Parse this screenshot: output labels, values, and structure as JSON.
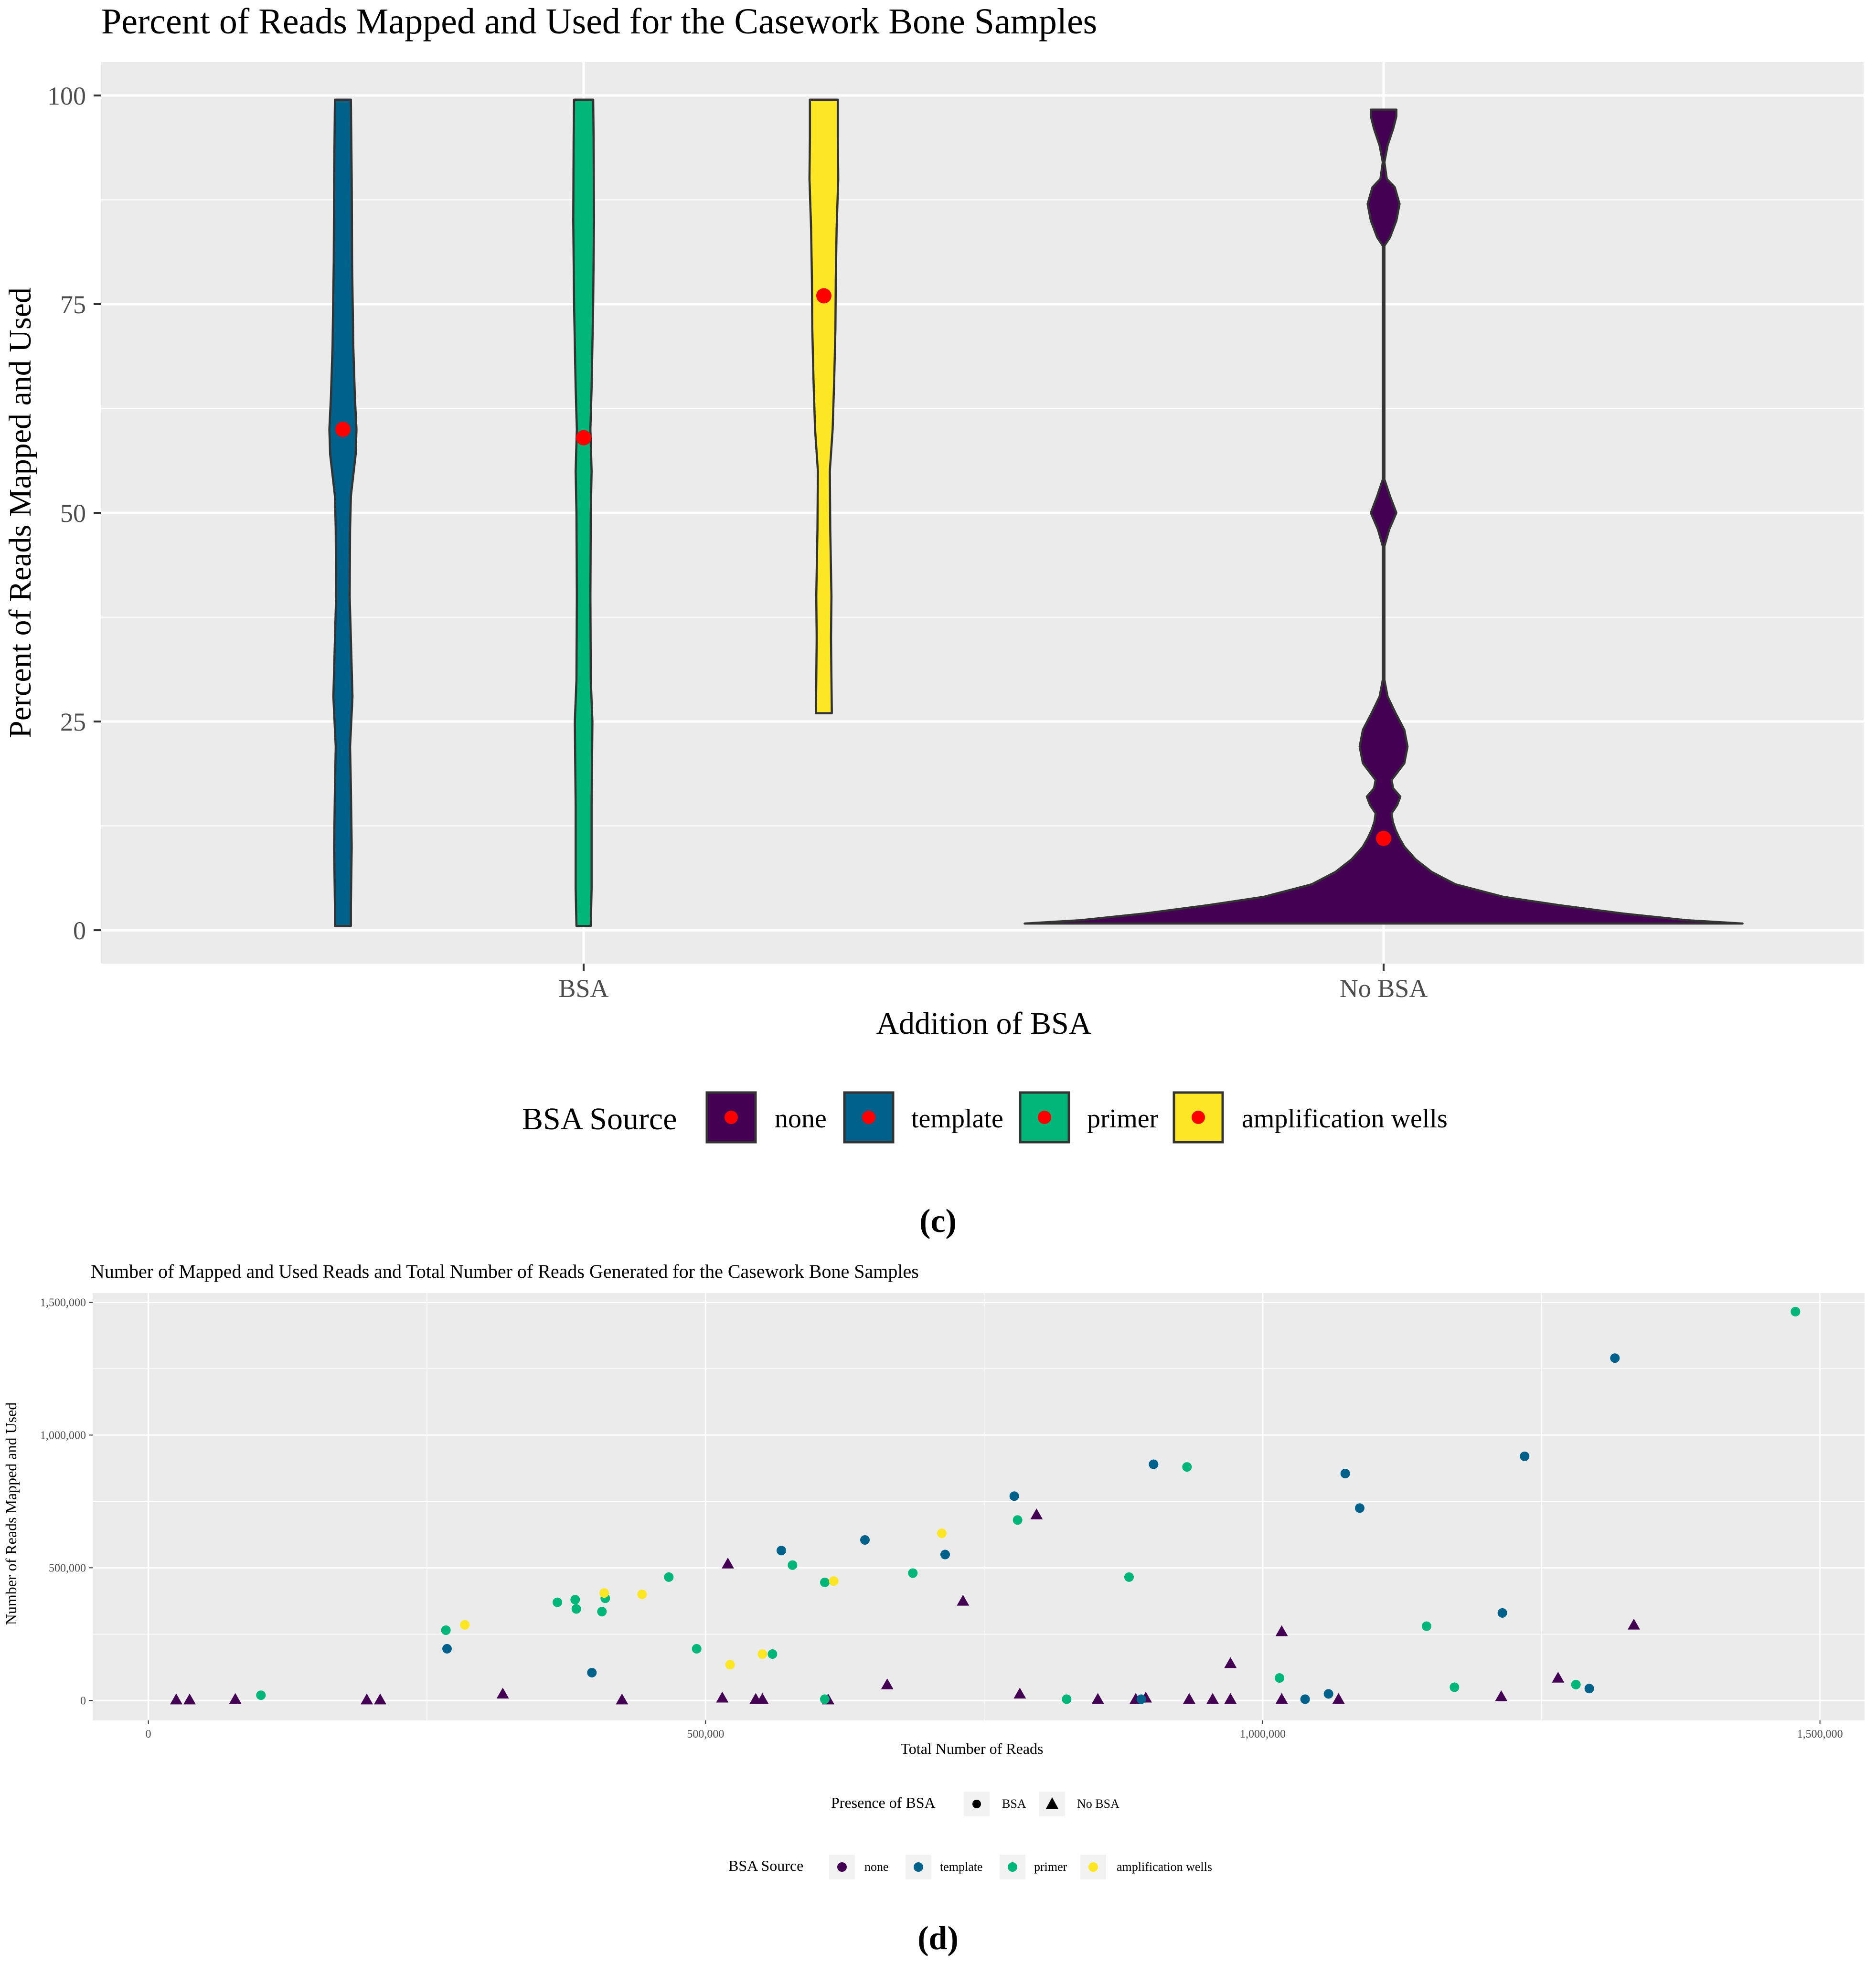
{
  "colors": {
    "none": "#440154",
    "template": "#00628b",
    "primer": "#00b679",
    "amplification_wells": "#fde725",
    "mean_point": "#ff0000",
    "panel_bg": "#ebebeb",
    "grid": "#ffffff",
    "outline": "#333333"
  },
  "chart_data": [
    {
      "id": "c",
      "type": "violin",
      "panel_label": "(c)",
      "title": "Percent of Reads Mapped and Used for the Casework Bone Samples",
      "xlabel": "Addition of BSA",
      "ylabel": "Percent of Reads Mapped and Used",
      "categories": [
        "BSA",
        "No BSA"
      ],
      "ylim": [
        -4,
        104
      ],
      "yticks": [
        0,
        25,
        50,
        75,
        100
      ],
      "grid": true,
      "legend": {
        "title": "BSA Source",
        "position": "bottom",
        "entries": [
          "none",
          "template",
          "primer",
          "amplification wells"
        ]
      },
      "violins": [
        {
          "source": "template",
          "category": "BSA",
          "mean": 60,
          "profile": [
            [
              0.5,
              1.0
            ],
            [
              3,
              1.0
            ],
            [
              10,
              1.1
            ],
            [
              17,
              1.0
            ],
            [
              22,
              0.9
            ],
            [
              28,
              1.2
            ],
            [
              40,
              0.85
            ],
            [
              48,
              0.9
            ],
            [
              52,
              1.0
            ],
            [
              57,
              1.6
            ],
            [
              60,
              1.7
            ],
            [
              64,
              1.5
            ],
            [
              70,
              1.3
            ],
            [
              80,
              1.15
            ],
            [
              90,
              1.1
            ],
            [
              99.5,
              1.0
            ]
          ]
        },
        {
          "source": "primer",
          "category": "BSA",
          "mean": 59,
          "profile": [
            [
              0.5,
              0.9
            ],
            [
              5,
              1.0
            ],
            [
              15,
              1.0
            ],
            [
              25,
              1.1
            ],
            [
              30,
              0.9
            ],
            [
              40,
              0.85
            ],
            [
              50,
              0.9
            ],
            [
              55,
              1.0
            ],
            [
              60,
              0.85
            ],
            [
              65,
              1.0
            ],
            [
              75,
              1.2
            ],
            [
              85,
              1.3
            ],
            [
              95,
              1.25
            ],
            [
              99.5,
              1.2
            ]
          ]
        },
        {
          "source": "amplification wells",
          "category": "BSA",
          "mean": 76,
          "profile": [
            [
              26,
              1.0
            ],
            [
              30,
              0.95
            ],
            [
              35,
              0.9
            ],
            [
              40,
              0.95
            ],
            [
              48,
              0.8
            ],
            [
              55,
              0.75
            ],
            [
              60,
              1.1
            ],
            [
              66,
              1.3
            ],
            [
              72,
              1.45
            ],
            [
              78,
              1.5
            ],
            [
              84,
              1.6
            ],
            [
              90,
              1.8
            ],
            [
              95,
              1.75
            ],
            [
              99.5,
              1.75
            ]
          ]
        },
        {
          "source": "none",
          "category": "No BSA",
          "mean": 11,
          "profile": [
            [
              0.8,
              45
            ],
            [
              1.2,
              38
            ],
            [
              2,
              30
            ],
            [
              3,
              22
            ],
            [
              4,
              15
            ],
            [
              5.5,
              9
            ],
            [
              7,
              6
            ],
            [
              8.5,
              4
            ],
            [
              10,
              2.6
            ],
            [
              11,
              2.0
            ],
            [
              12,
              1.5
            ],
            [
              13,
              1.15
            ],
            [
              14,
              1.0
            ],
            [
              15,
              1.7
            ],
            [
              16,
              2.1
            ],
            [
              17,
              1.2
            ],
            [
              18,
              1.0
            ],
            [
              19,
              1.8
            ],
            [
              20,
              2.6
            ],
            [
              22,
              3.0
            ],
            [
              24,
              2.6
            ],
            [
              26,
              1.5
            ],
            [
              28,
              0.5
            ],
            [
              30,
              0.1
            ],
            [
              46,
              0.1
            ],
            [
              48,
              0.7
            ],
            [
              50,
              1.6
            ],
            [
              52,
              0.8
            ],
            [
              54,
              0.1
            ],
            [
              82,
              0.1
            ],
            [
              83,
              0.8
            ],
            [
              85,
              1.6
            ],
            [
              87,
              2.0
            ],
            [
              89,
              1.4
            ],
            [
              90,
              0.4
            ],
            [
              92,
              0.1
            ],
            [
              94,
              0.5
            ],
            [
              96,
              1.2
            ],
            [
              97.5,
              1.6
            ],
            [
              98.3,
              1.6
            ]
          ]
        }
      ]
    },
    {
      "id": "d",
      "type": "scatter",
      "panel_label": "(d)",
      "title": "Number of Mapped and Used Reads and Total Number of Reads Generated for the Casework Bone Samples",
      "xlabel": "Total Number of Reads",
      "ylabel": "Number of Reads Mapped and Used",
      "xlim": [
        -50000,
        1540000
      ],
      "ylim": [
        -75000,
        1535000
      ],
      "xticks": [
        0,
        500000,
        1000000,
        1500000
      ],
      "xtick_labels": [
        "0",
        "500,000",
        "1,000,000",
        "1,500,000"
      ],
      "yticks": [
        0,
        500000,
        1000000,
        1500000
      ],
      "ytick_labels": [
        "0",
        "500,000",
        "1,000,000",
        "1,500,000"
      ],
      "grid": true,
      "legend_shape": {
        "title": "Presence of BSA",
        "entries": [
          {
            "label": "BSA",
            "shape": "circle"
          },
          {
            "label": "No BSA",
            "shape": "triangle"
          }
        ]
      },
      "legend_color": {
        "title": "BSA Source",
        "entries": [
          "none",
          "template",
          "primer",
          "amplification wells"
        ]
      },
      "points": [
        {
          "x": 25000,
          "y": 3000,
          "source": "none",
          "bsa": "No BSA"
        },
        {
          "x": 37000,
          "y": 3000,
          "source": "none",
          "bsa": "No BSA"
        },
        {
          "x": 78000,
          "y": 5000,
          "source": "none",
          "bsa": "No BSA"
        },
        {
          "x": 196000,
          "y": 3000,
          "source": "none",
          "bsa": "No BSA"
        },
        {
          "x": 208000,
          "y": 3000,
          "source": "none",
          "bsa": "No BSA"
        },
        {
          "x": 318000,
          "y": 25000,
          "source": "none",
          "bsa": "No BSA"
        },
        {
          "x": 425000,
          "y": 3000,
          "source": "none",
          "bsa": "No BSA"
        },
        {
          "x": 515000,
          "y": 10000,
          "source": "none",
          "bsa": "No BSA"
        },
        {
          "x": 520000,
          "y": 515000,
          "source": "none",
          "bsa": "No BSA"
        },
        {
          "x": 545000,
          "y": 5000,
          "source": "none",
          "bsa": "No BSA"
        },
        {
          "x": 551000,
          "y": 5000,
          "source": "none",
          "bsa": "No BSA"
        },
        {
          "x": 610000,
          "y": 3000,
          "source": "none",
          "bsa": "No BSA"
        },
        {
          "x": 663000,
          "y": 60000,
          "source": "none",
          "bsa": "No BSA"
        },
        {
          "x": 731000,
          "y": 375000,
          "source": "none",
          "bsa": "No BSA"
        },
        {
          "x": 782000,
          "y": 25000,
          "source": "none",
          "bsa": "No BSA"
        },
        {
          "x": 797000,
          "y": 700000,
          "source": "none",
          "bsa": "No BSA"
        },
        {
          "x": 852000,
          "y": 5000,
          "source": "none",
          "bsa": "No BSA"
        },
        {
          "x": 886000,
          "y": 5000,
          "source": "none",
          "bsa": "No BSA"
        },
        {
          "x": 895000,
          "y": 10000,
          "source": "none",
          "bsa": "No BSA"
        },
        {
          "x": 934000,
          "y": 5000,
          "source": "none",
          "bsa": "No BSA"
        },
        {
          "x": 955000,
          "y": 5000,
          "source": "none",
          "bsa": "No BSA"
        },
        {
          "x": 971000,
          "y": 5000,
          "source": "none",
          "bsa": "No BSA"
        },
        {
          "x": 971000,
          "y": 140000,
          "source": "none",
          "bsa": "No BSA"
        },
        {
          "x": 1017000,
          "y": 5000,
          "source": "none",
          "bsa": "No BSA"
        },
        {
          "x": 1017000,
          "y": 260000,
          "source": "none",
          "bsa": "No BSA"
        },
        {
          "x": 1068000,
          "y": 5000,
          "source": "none",
          "bsa": "No BSA"
        },
        {
          "x": 1214000,
          "y": 15000,
          "source": "none",
          "bsa": "No BSA"
        },
        {
          "x": 1265000,
          "y": 85000,
          "source": "none",
          "bsa": "No BSA"
        },
        {
          "x": 1333000,
          "y": 285000,
          "source": "none",
          "bsa": "No BSA"
        },
        {
          "x": 268000,
          "y": 195000,
          "source": "template",
          "bsa": "BSA"
        },
        {
          "x": 398000,
          "y": 105000,
          "source": "template",
          "bsa": "BSA"
        },
        {
          "x": 568000,
          "y": 565000,
          "source": "template",
          "bsa": "BSA"
        },
        {
          "x": 643000,
          "y": 605000,
          "source": "template",
          "bsa": "BSA"
        },
        {
          "x": 715000,
          "y": 550000,
          "source": "template",
          "bsa": "BSA"
        },
        {
          "x": 777000,
          "y": 770000,
          "source": "template",
          "bsa": "BSA"
        },
        {
          "x": 902000,
          "y": 890000,
          "source": "template",
          "bsa": "BSA"
        },
        {
          "x": 891000,
          "y": 5000,
          "source": "template",
          "bsa": "BSA"
        },
        {
          "x": 1038000,
          "y": 5000,
          "source": "template",
          "bsa": "BSA"
        },
        {
          "x": 1059000,
          "y": 25000,
          "source": "template",
          "bsa": "BSA"
        },
        {
          "x": 1074000,
          "y": 855000,
          "source": "template",
          "bsa": "BSA"
        },
        {
          "x": 1087000,
          "y": 725000,
          "source": "template",
          "bsa": "BSA"
        },
        {
          "x": 1215000,
          "y": 330000,
          "source": "template",
          "bsa": "BSA"
        },
        {
          "x": 1235000,
          "y": 920000,
          "source": "template",
          "bsa": "BSA"
        },
        {
          "x": 1316000,
          "y": 1290000,
          "source": "template",
          "bsa": "BSA"
        },
        {
          "x": 1293000,
          "y": 45000,
          "source": "template",
          "bsa": "BSA"
        },
        {
          "x": 101000,
          "y": 20000,
          "source": "primer",
          "bsa": "BSA"
        },
        {
          "x": 267000,
          "y": 265000,
          "source": "primer",
          "bsa": "BSA"
        },
        {
          "x": 367000,
          "y": 370000,
          "source": "primer",
          "bsa": "BSA"
        },
        {
          "x": 383000,
          "y": 380000,
          "source": "primer",
          "bsa": "BSA"
        },
        {
          "x": 384000,
          "y": 345000,
          "source": "primer",
          "bsa": "BSA"
        },
        {
          "x": 407000,
          "y": 335000,
          "source": "primer",
          "bsa": "BSA"
        },
        {
          "x": 410000,
          "y": 385000,
          "source": "primer",
          "bsa": "BSA"
        },
        {
          "x": 467000,
          "y": 465000,
          "source": "primer",
          "bsa": "BSA"
        },
        {
          "x": 492000,
          "y": 195000,
          "source": "primer",
          "bsa": "BSA"
        },
        {
          "x": 560000,
          "y": 175000,
          "source": "primer",
          "bsa": "BSA"
        },
        {
          "x": 578000,
          "y": 510000,
          "source": "primer",
          "bsa": "BSA"
        },
        {
          "x": 607000,
          "y": 445000,
          "source": "primer",
          "bsa": "BSA"
        },
        {
          "x": 607000,
          "y": 5000,
          "source": "primer",
          "bsa": "BSA"
        },
        {
          "x": 686000,
          "y": 480000,
          "source": "primer",
          "bsa": "BSA"
        },
        {
          "x": 780000,
          "y": 680000,
          "source": "primer",
          "bsa": "BSA"
        },
        {
          "x": 824000,
          "y": 5000,
          "source": "primer",
          "bsa": "BSA"
        },
        {
          "x": 880000,
          "y": 465000,
          "source": "primer",
          "bsa": "BSA"
        },
        {
          "x": 932000,
          "y": 880000,
          "source": "primer",
          "bsa": "BSA"
        },
        {
          "x": 1015000,
          "y": 85000,
          "source": "primer",
          "bsa": "BSA"
        },
        {
          "x": 1147000,
          "y": 280000,
          "source": "primer",
          "bsa": "BSA"
        },
        {
          "x": 1172000,
          "y": 50000,
          "source": "primer",
          "bsa": "BSA"
        },
        {
          "x": 1281000,
          "y": 60000,
          "source": "primer",
          "bsa": "BSA"
        },
        {
          "x": 1478000,
          "y": 1465000,
          "source": "primer",
          "bsa": "BSA"
        },
        {
          "x": 284000,
          "y": 285000,
          "source": "amplification wells",
          "bsa": "BSA"
        },
        {
          "x": 409000,
          "y": 405000,
          "source": "amplification wells",
          "bsa": "BSA"
        },
        {
          "x": 443000,
          "y": 400000,
          "source": "amplification wells",
          "bsa": "BSA"
        },
        {
          "x": 522000,
          "y": 135000,
          "source": "amplification wells",
          "bsa": "BSA"
        },
        {
          "x": 551000,
          "y": 175000,
          "source": "amplification wells",
          "bsa": "BSA"
        },
        {
          "x": 615000,
          "y": 450000,
          "source": "amplification wells",
          "bsa": "BSA"
        },
        {
          "x": 712000,
          "y": 630000,
          "source": "amplification wells",
          "bsa": "BSA"
        }
      ]
    }
  ]
}
